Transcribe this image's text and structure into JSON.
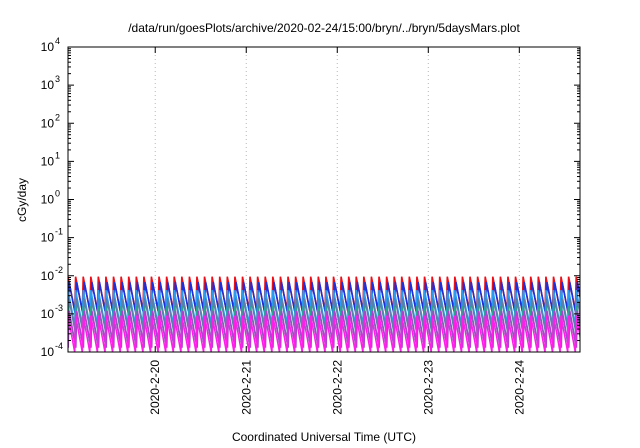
{
  "chart_data": {
    "type": "line",
    "title": "/data/run/goesPlots/archive/2020-02-24/15:00/bryn/../bryn/5daysMars.plot",
    "xlabel": "Coordinated Universal Time (UTC)",
    "ylabel": "cGy/day",
    "yscale": "log",
    "ylim": [
      0.0001,
      10000
    ],
    "xlim": [
      "2020-02-19 01:00",
      "2020-02-24 16:00"
    ],
    "grid": true,
    "x_tick_labels": [
      "2020-2-20",
      "2020-2-21",
      "2020-2-22",
      "2020-2-23",
      "2020-2-24"
    ],
    "x_ticks": [
      "2020-02-20 00:00",
      "2020-02-21 00:00",
      "2020-02-22 00:00",
      "2020-02-23 00:00",
      "2020-02-24 00:00"
    ],
    "y_tick_exponents": [
      -4,
      -3,
      -2,
      -1,
      0,
      1,
      2,
      3,
      4
    ],
    "y_tick_base": "10",
    "sawtooth_period_hours": 2,
    "series": [
      {
        "color": "#e8101a",
        "peak": 0.0095,
        "trough": 0.0012
      },
      {
        "color": "#1d2fd8",
        "peak": 0.0068,
        "trough": 0.00085
      },
      {
        "color": "#2a9cf0",
        "peak": 0.0042,
        "trough": 0.0005
      },
      {
        "color": "#5a7fa8",
        "peak": 0.0024,
        "trough": 0.00028
      },
      {
        "color": "#2aa58f",
        "peak": 0.0016,
        "trough": 0.00018
      },
      {
        "color": "#b040d0",
        "peak": 0.0012,
        "trough": 0.00013
      },
      {
        "color": "#ff1fe8",
        "peak": 0.0009,
        "trough": 0.0001
      }
    ]
  }
}
